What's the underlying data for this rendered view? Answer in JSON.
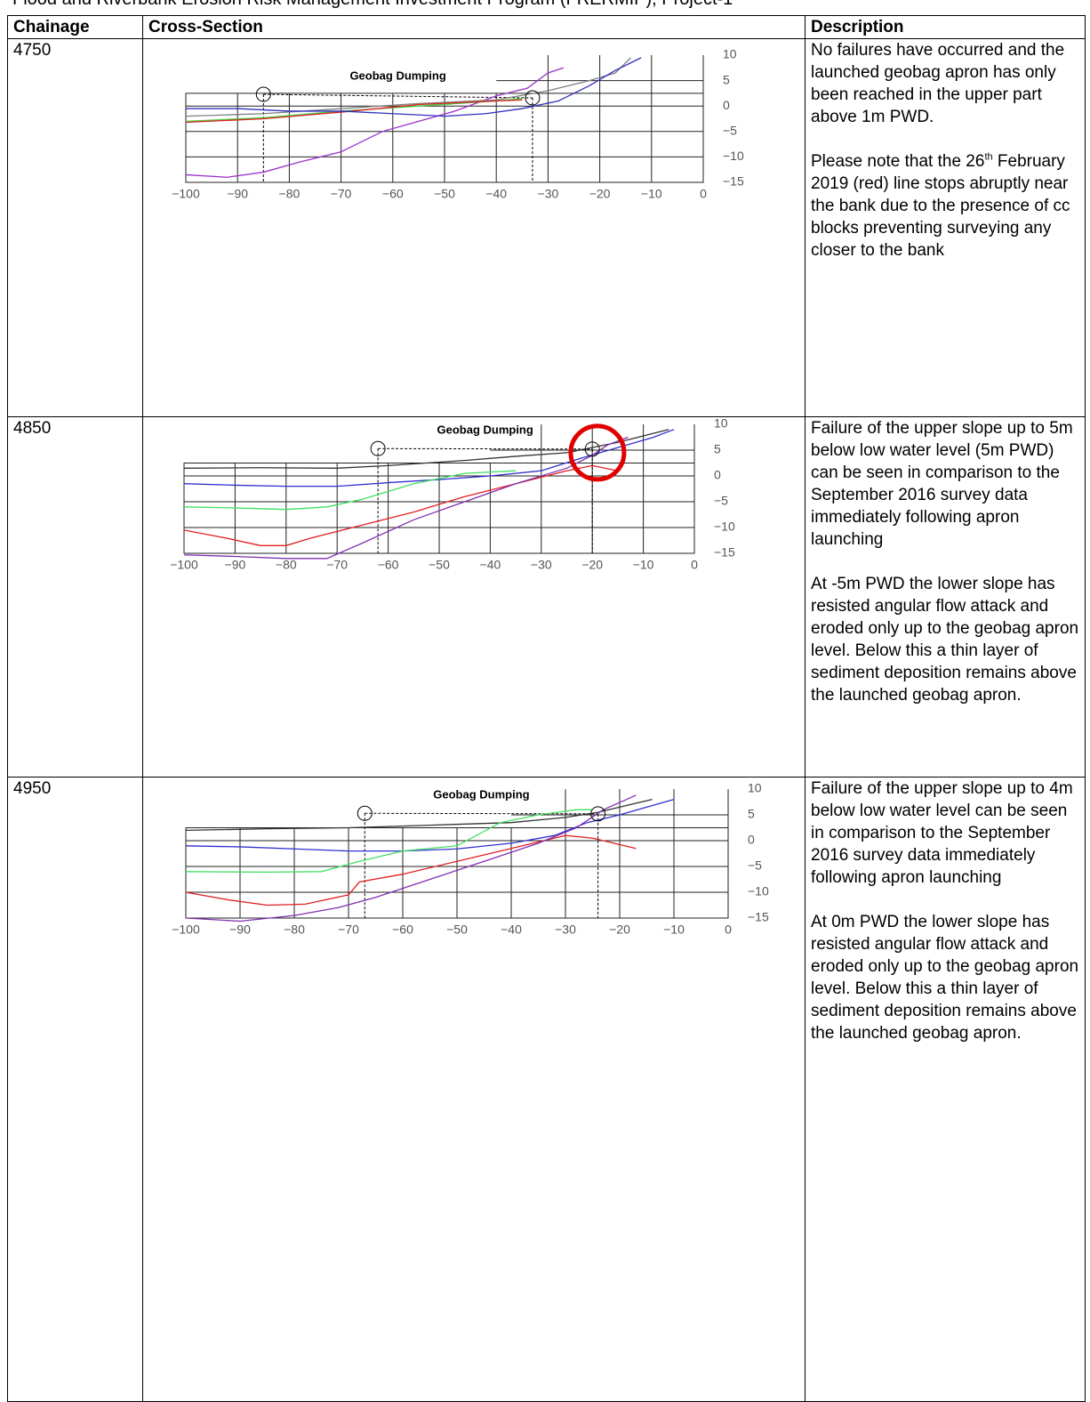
{
  "header": {
    "title": "Flood and Riverbank Erosion Risk Management Investment Program (FRERMIP), Project-1"
  },
  "table": {
    "columns": [
      "Chainage",
      "Cross-Section",
      "Description"
    ],
    "rows": [
      {
        "chainage": "4750",
        "description": [
          "No failures have occurred and the launched geobag apron has only been reached in the upper part above 1m PWD.",
          {
            "before": "Please note that the 26",
            "sup": "th",
            "after": " February 2019 (red) line stops abruptly near the bank due to the presence of cc blocks preventing surveying any closer to the bank"
          }
        ]
      },
      {
        "chainage": "4850",
        "description": [
          "Failure of the upper slope up to 5m below low water level (5m PWD) can be seen in comparison to the September 2016 survey data immediately following apron launching",
          "At -5m PWD the lower slope has resisted angular flow attack and eroded only up to the geobag apron level. Below this a thin layer of sediment deposition remains above the launched geobag apron."
        ]
      },
      {
        "chainage": "4950",
        "description": [
          "Failure of the upper slope up to 4m below low water level can be seen in comparison to the September 2016 survey data immediately following apron launching",
          "At 0m PWD the lower slope has resisted angular flow attack and eroded only up to the geobag apron level. Below this a thin layer of sediment deposition remains above the launched geobag apron."
        ]
      }
    ]
  },
  "chart_data": [
    {
      "type": "line",
      "annotation": "Geobag Dumping",
      "grid": true,
      "xlim": [
        -100,
        0
      ],
      "ylim": [
        -15,
        10
      ],
      "xticks": [
        {
          "value": -100,
          "label": "−100"
        },
        {
          "value": -90,
          "label": "−90"
        },
        {
          "value": -80,
          "label": "−80"
        },
        {
          "value": -70,
          "label": "−70"
        },
        {
          "value": -60,
          "label": "−60"
        },
        {
          "value": -50,
          "label": "−50"
        },
        {
          "value": -40,
          "label": "−40"
        },
        {
          "value": -30,
          "label": "−30"
        },
        {
          "value": -20,
          "label": "−20"
        },
        {
          "value": -10,
          "label": "−10"
        },
        0
      ],
      "yticks": [
        10,
        5,
        0,
        {
          "value": -5,
          "label": "−5"
        },
        {
          "value": -10,
          "label": "−10"
        },
        {
          "value": -15,
          "label": "−15"
        }
      ],
      "markers": {
        "x": [
          -85,
          -33
        ],
        "y": [
          2.3,
          1.6
        ]
      },
      "series": [
        {
          "color": "#9b30c8",
          "x": [
            -100,
            -92,
            -85,
            -78,
            -70,
            -62,
            -55,
            -48,
            -40,
            -34,
            -30,
            -27
          ],
          "values": [
            -13.5,
            -14,
            -13,
            -11,
            -9,
            -5,
            -3,
            -1,
            2,
            3.5,
            6.5,
            7.5
          ]
        },
        {
          "color": "#808080",
          "x": [
            -100,
            -85,
            -70,
            -55,
            -40,
            -30,
            -22,
            -17,
            -14
          ],
          "values": [
            -2,
            -1.5,
            -0.5,
            0.5,
            1.2,
            3,
            5,
            6.5,
            9.5
          ]
        },
        {
          "color": "#40d040",
          "x": [
            -100,
            -85,
            -70,
            -55,
            -40,
            -35
          ],
          "values": [
            -3,
            -2.3,
            -1,
            0,
            1,
            1.5
          ]
        },
        {
          "color": "#e02020",
          "x": [
            -100,
            -85,
            -70,
            -55,
            -40,
            -35
          ],
          "values": [
            -3.2,
            -2.5,
            -1.2,
            0.3,
            1,
            1.2
          ]
        },
        {
          "color": "#3030c0",
          "x": [
            -100,
            -90,
            -80,
            -70,
            -60,
            -50,
            -42,
            -35,
            -28,
            -22,
            -17,
            -12
          ],
          "values": [
            -0.5,
            -0.5,
            -1,
            -1,
            -1.5,
            -2,
            -1.5,
            -0.5,
            1,
            4,
            7,
            9.5
          ]
        }
      ]
    },
    {
      "type": "line",
      "annotation": "Geobag Dumping",
      "grid": true,
      "xlim": [
        -100,
        0
      ],
      "ylim": [
        -15,
        10
      ],
      "xticks": [
        {
          "value": -100,
          "label": "−100"
        },
        {
          "value": -90,
          "label": "−90"
        },
        {
          "value": -80,
          "label": "−80"
        },
        {
          "value": -70,
          "label": "−70"
        },
        {
          "value": -60,
          "label": "−60"
        },
        {
          "value": -50,
          "label": "−50"
        },
        {
          "value": -40,
          "label": "−40"
        },
        {
          "value": -30,
          "label": "−30"
        },
        {
          "value": -20,
          "label": "−20"
        },
        {
          "value": -10,
          "label": "−10"
        },
        0
      ],
      "yticks": [
        10,
        5,
        0,
        {
          "value": -5,
          "label": "−5"
        },
        {
          "value": -10,
          "label": "−10"
        },
        {
          "value": -15,
          "label": "−15"
        }
      ],
      "markers": {
        "x": [
          -62,
          -20
        ],
        "y": [
          5.3,
          5.2
        ]
      },
      "highlight": {
        "x": -19,
        "y": 4.5,
        "color": "#e00000"
      },
      "series": [
        {
          "color": "#333333",
          "x": [
            -100,
            -85,
            -70,
            -60,
            -45,
            -35,
            -25,
            -15,
            -5
          ],
          "values": [
            1.5,
            1.6,
            1.5,
            2,
            3,
            3.8,
            4.5,
            6.5,
            9
          ]
        },
        {
          "color": "#3030d0",
          "x": [
            -100,
            -90,
            -80,
            -70,
            -60,
            -50,
            -40,
            -30,
            -22,
            -15,
            -8,
            -4
          ],
          "values": [
            -1.5,
            -1.8,
            -2,
            -2,
            -1.3,
            -0.7,
            0,
            1,
            3.5,
            5.5,
            7.5,
            9
          ]
        },
        {
          "color": "#40e060",
          "x": [
            -100,
            -90,
            -80,
            -72,
            -65,
            -55,
            -45,
            -35
          ],
          "values": [
            -6,
            -6.2,
            -6.5,
            -6,
            -4.5,
            -1.5,
            0.5,
            1
          ]
        },
        {
          "color": "#e02020",
          "x": [
            -100,
            -92,
            -85,
            -80,
            -75,
            -65,
            -55,
            -45,
            -35,
            -25,
            -20,
            -15
          ],
          "values": [
            -10.5,
            -12,
            -13.5,
            -13.5,
            -12,
            -9.5,
            -7,
            -4,
            -1.5,
            1,
            2,
            1
          ]
        },
        {
          "color": "#8030b0",
          "x": [
            -100,
            -90,
            -80,
            -72,
            -65,
            -55,
            -45,
            -35,
            -25,
            -20,
            -17,
            -13
          ],
          "values": [
            -15.3,
            -15.6,
            -16,
            -16,
            -13,
            -8.5,
            -5,
            -1.5,
            1.5,
            4,
            6,
            7.5
          ]
        }
      ]
    },
    {
      "type": "line",
      "annotation": "Geobag Dumping",
      "grid": true,
      "xlim": [
        -100,
        0
      ],
      "ylim": [
        -15,
        10
      ],
      "xticks": [
        {
          "value": -100,
          "label": "−100"
        },
        {
          "value": -90,
          "label": "−90"
        },
        {
          "value": -80,
          "label": "−80"
        },
        {
          "value": -70,
          "label": "−70"
        },
        {
          "value": -60,
          "label": "−60"
        },
        {
          "value": -50,
          "label": "−50"
        },
        {
          "value": -40,
          "label": "−40"
        },
        {
          "value": -30,
          "label": "−30"
        },
        {
          "value": -20,
          "label": "−20"
        },
        {
          "value": -10,
          "label": "−10"
        },
        0
      ],
      "yticks": [
        10,
        5,
        0,
        {
          "value": -5,
          "label": "−5"
        },
        {
          "value": -10,
          "label": "−10"
        },
        {
          "value": -15,
          "label": "−15"
        }
      ],
      "markers": {
        "x": [
          -67,
          -24
        ],
        "y": [
          5.3,
          5.2
        ]
      },
      "series": [
        {
          "color": "#333333",
          "x": [
            -100,
            -85,
            -70,
            -55,
            -40,
            -30,
            -24,
            -18,
            -14
          ],
          "values": [
            2,
            2.3,
            2.5,
            3,
            3.5,
            4.5,
            5.5,
            7,
            8
          ]
        },
        {
          "color": "#3030d0",
          "x": [
            -100,
            -90,
            -80,
            -70,
            -60,
            -50,
            -40,
            -32,
            -26,
            -20,
            -15,
            -10
          ],
          "values": [
            -1,
            -1.2,
            -1.6,
            -2,
            -2,
            -1.6,
            -0.5,
            1,
            3.5,
            5,
            6.5,
            8
          ]
        },
        {
          "color": "#40e060",
          "x": [
            -100,
            -85,
            -75,
            -68,
            -60,
            -50,
            -42,
            -35,
            -28,
            -25
          ],
          "values": [
            -6,
            -6.1,
            -6,
            -4,
            -2,
            -1,
            3.5,
            5,
            6,
            6
          ]
        },
        {
          "color": "#e02020",
          "x": [
            -100,
            -92,
            -85,
            -78,
            -70,
            -68,
            -60,
            -50,
            -40,
            -30,
            -25,
            -17
          ],
          "values": [
            -10,
            -11.5,
            -12.5,
            -12.3,
            -10.5,
            -8,
            -6.5,
            -4,
            -1.5,
            1,
            0.5,
            -1.5
          ]
        },
        {
          "color": "#8030b0",
          "x": [
            -100,
            -90,
            -80,
            -72,
            -65,
            -55,
            -45,
            -35,
            -28,
            -23,
            -17
          ],
          "values": [
            -15,
            -15.6,
            -14.5,
            -13,
            -11,
            -7.5,
            -4,
            -0.5,
            2.5,
            6,
            8.8
          ]
        }
      ]
    }
  ]
}
